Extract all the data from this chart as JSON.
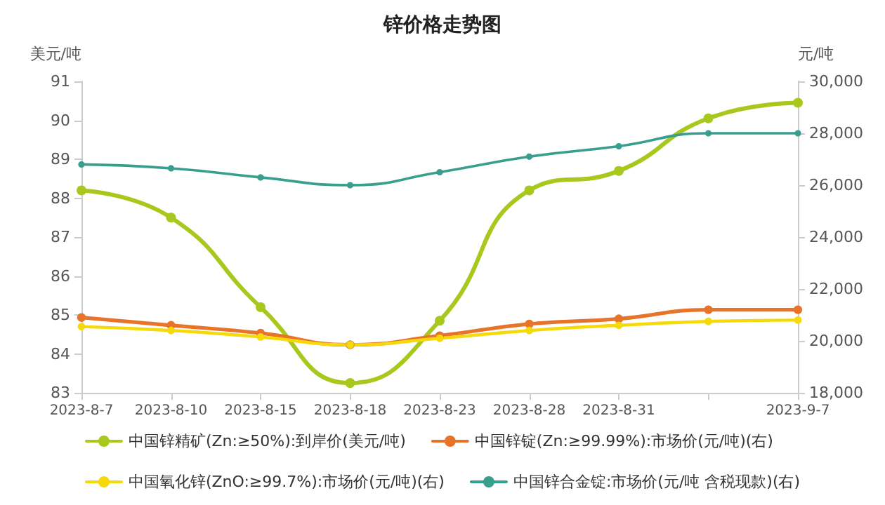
{
  "chart_data": {
    "type": "line",
    "title": "锌价格走势图",
    "ylabel": "美元/吨",
    "y2label": "元/吨",
    "categories": [
      "2023-8-7",
      "2023-8-10",
      "2023-8-15",
      "2023-8-18",
      "2023-8-23",
      "2023-8-28",
      "2023-8-31",
      null,
      "2023-9-7"
    ],
    "series": [
      {
        "name": "中国锌精矿(Zn:≥50%):到岸价(美元/吨)",
        "color": "#a8c81e",
        "values": [
          88.2,
          87.5,
          85.2,
          83.25,
          84.85,
          88.2,
          88.7,
          90.05,
          90.45
        ]
      },
      {
        "name": "中国锌锭(Zn:≥99.99%):市场价(元/吨)(右)",
        "color": "#e8742a",
        "axis": "y2",
        "values": [
          20900,
          20600,
          20300,
          19850,
          20200,
          20650,
          20850,
          21200,
          21200
        ]
      },
      {
        "name": "中国氧化锌(ZnO:≥99.7%):市场价(元/吨)(右)",
        "color": "#f5d90a",
        "axis": "y2",
        "values": [
          20550,
          20400,
          20150,
          19850,
          20100,
          20400,
          20600,
          20750,
          20800
        ]
      },
      {
        "name": "中国锌合金锭:市场价(元/吨 含税现款)(右)",
        "color": "#3a9e8f",
        "axis": "y2",
        "values": [
          26800,
          26650,
          26300,
          26000,
          26500,
          27100,
          27500,
          28000,
          28000
        ]
      }
    ],
    "ylim": [
      83,
      91
    ],
    "yticks": [
      83,
      84,
      85,
      86,
      87,
      88,
      89,
      90,
      91
    ],
    "y2lim": [
      18000,
      30000
    ],
    "y2ticks": [
      {
        "value": 18000,
        "label": "18,000"
      },
      {
        "value": 20000,
        "label": "20,000"
      },
      {
        "value": 22000,
        "label": "22,000"
      },
      {
        "value": 24000,
        "label": "24,000"
      },
      {
        "value": 26000,
        "label": "26,000"
      },
      {
        "value": 28000,
        "label": "28,000"
      },
      {
        "value": 30000,
        "label": "30,000"
      }
    ],
    "grid": false,
    "legend": "bottom",
    "marker": "circle",
    "line_style": "solid"
  }
}
